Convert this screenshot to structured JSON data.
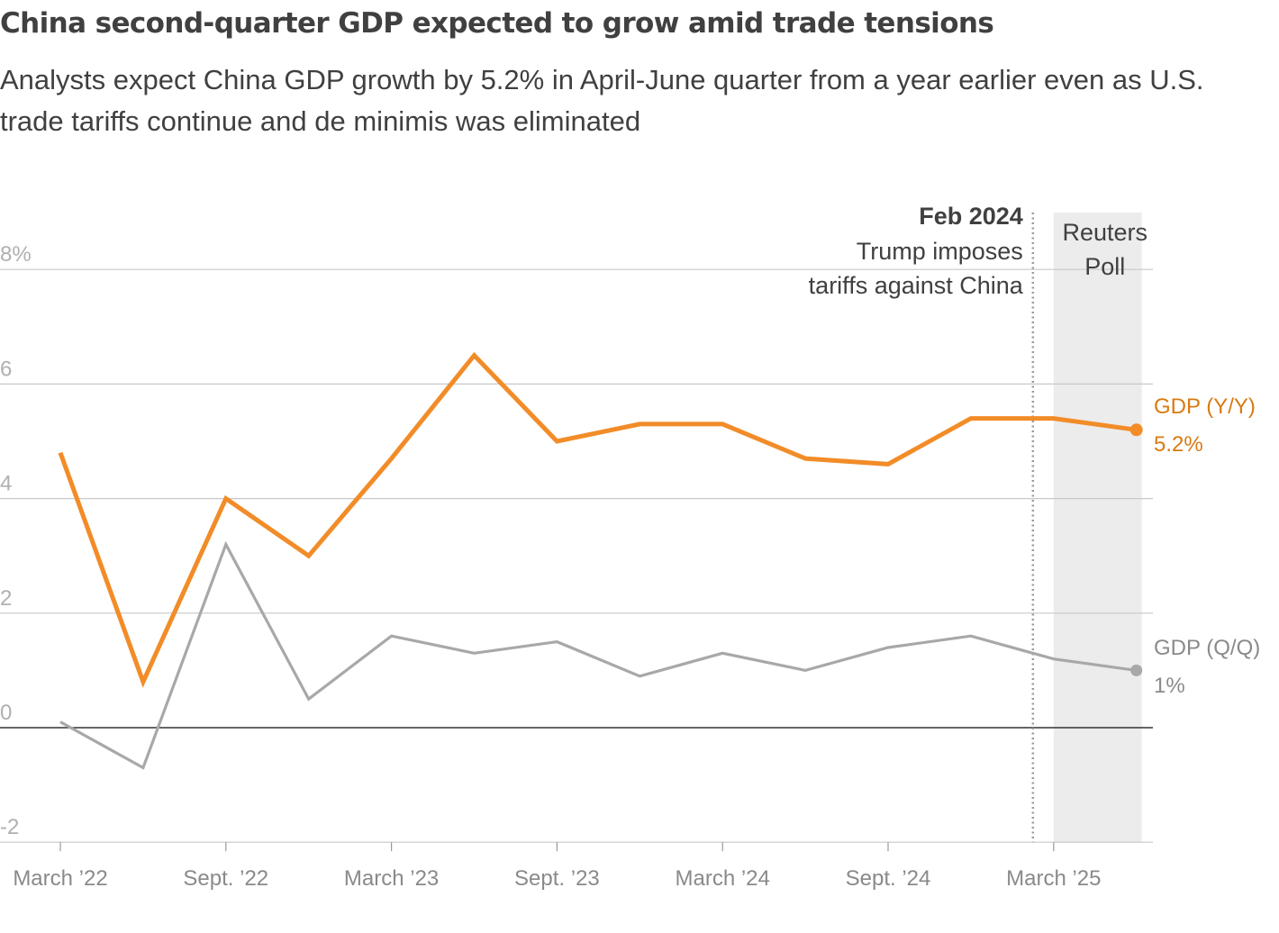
{
  "title": "China second-quarter GDP expected to grow amid trade tensions",
  "subtitle": "Analysts expect China GDP growth by 5.2% in April-June quarter from a year earlier even as U.S. trade tariffs continue and de minimis was eliminated",
  "colors": {
    "yy": "#f28c28",
    "qq": "#a8a8a8",
    "grid": "#c8c8c8",
    "zero": "#333333",
    "shade": "#ececec"
  },
  "chart_data": {
    "type": "line",
    "title": "China second-quarter GDP expected to grow amid trade tensions",
    "xlabel": "",
    "ylabel": "",
    "ylim": [
      -2,
      8
    ],
    "y_ticks": [
      {
        "value": 8,
        "label": "8%"
      },
      {
        "value": 6,
        "label": "6"
      },
      {
        "value": 4,
        "label": "4"
      },
      {
        "value": 2,
        "label": "2"
      },
      {
        "value": 0,
        "label": "0"
      },
      {
        "value": -2,
        "label": "-2"
      }
    ],
    "x_ticks": [
      {
        "index": 0,
        "label": "March ’22"
      },
      {
        "index": 2,
        "label": "Sept. ’22"
      },
      {
        "index": 4,
        "label": "March ’23"
      },
      {
        "index": 6,
        "label": "Sept. ’23"
      },
      {
        "index": 8,
        "label": "March ’24"
      },
      {
        "index": 10,
        "label": "Sept. ’24"
      },
      {
        "index": 12,
        "label": "March ’25"
      }
    ],
    "quarters": [
      "Mar 2022",
      "Jun 2022",
      "Sep 2022",
      "Dec 2022",
      "Mar 2023",
      "Jun 2023",
      "Sep 2023",
      "Dec 2023",
      "Mar 2024",
      "Jun 2024",
      "Sep 2024",
      "Dec 2024",
      "Mar 2025",
      "Jun 2025"
    ],
    "series": [
      {
        "name": "GDP (Y/Y)",
        "end_label": "5.2%",
        "values": [
          4.8,
          0.8,
          4.0,
          3.0,
          4.7,
          6.5,
          5.0,
          5.3,
          5.3,
          4.7,
          4.6,
          5.4,
          5.4,
          5.2
        ]
      },
      {
        "name": "GDP (Q/Q)",
        "end_label": "1%",
        "values": [
          0.1,
          -0.7,
          3.2,
          0.5,
          1.6,
          1.3,
          1.5,
          0.9,
          1.3,
          1.0,
          1.4,
          1.6,
          1.2,
          1.0
        ]
      }
    ],
    "annotation": {
      "date": "Feb 2024",
      "lines": [
        "Trump imposes",
        "tariffs against China"
      ],
      "x_index": 11.75
    },
    "forecast": {
      "label_lines": [
        "Reuters",
        "Poll"
      ],
      "x_start_index": 12,
      "x_end_index": 13
    }
  }
}
